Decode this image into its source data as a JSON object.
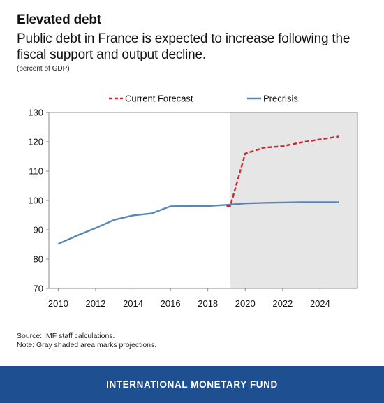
{
  "header": {
    "title": "Elevated debt",
    "subtitle": "Public debt in France is expected to increase following the fiscal support and output decline.",
    "units": "(percent of GDP)"
  },
  "notes": {
    "source": "Source: IMF staff calculations.",
    "note": "Note: Gray shaded area marks projections."
  },
  "footer": {
    "label": "INTERNATIONAL MONETARY FUND"
  },
  "chart_data": {
    "type": "line",
    "xlim": [
      2009.5,
      2026
    ],
    "ylim": [
      70,
      130
    ],
    "yticks": [
      70,
      80,
      90,
      100,
      110,
      120,
      130
    ],
    "xticks": [
      2010,
      2012,
      2014,
      2016,
      2018,
      2020,
      2022,
      2024
    ],
    "grid": false,
    "legend": "top",
    "projection_start": 2019.2,
    "colors": {
      "current": "#c8282e",
      "precrisis": "#5b87b5",
      "shade": "#e6e6e6"
    },
    "series": [
      {
        "name": "Current Forecast",
        "style": "dashed",
        "x": [
          2019,
          2019.2,
          2020,
          2021,
          2022,
          2023,
          2024,
          2025
        ],
        "y": [
          98.1,
          98.1,
          116.0,
          118.0,
          118.5,
          119.8,
          120.8,
          121.8
        ]
      },
      {
        "name": "Precrisis",
        "style": "solid",
        "x": [
          2010,
          2011,
          2012,
          2013,
          2014,
          2015,
          2016,
          2017,
          2018,
          2019,
          2020,
          2021,
          2022,
          2023,
          2024,
          2025
        ],
        "y": [
          85.2,
          88.0,
          90.6,
          93.4,
          94.9,
          95.6,
          98.0,
          98.1,
          98.1,
          98.5,
          99.0,
          99.2,
          99.3,
          99.4,
          99.4,
          99.4
        ]
      }
    ]
  }
}
